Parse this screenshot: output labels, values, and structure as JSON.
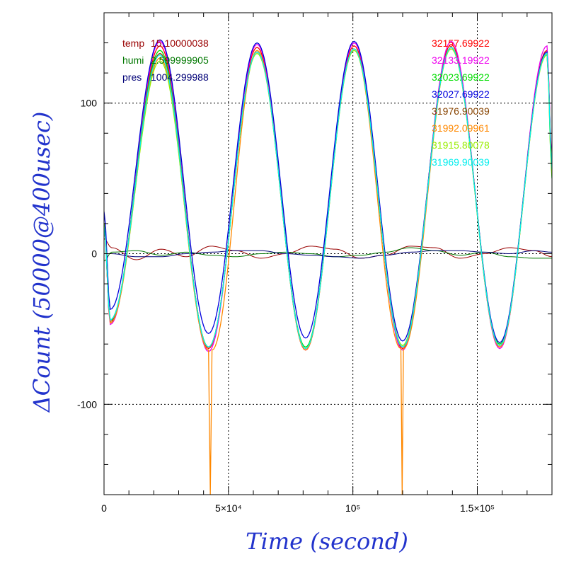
{
  "chart_data": {
    "type": "line",
    "xlabel": "Time (second)",
    "ylabel": "ΔCount (50000@400usec)",
    "xlim": [
      0,
      180000
    ],
    "ylim": [
      -160,
      160
    ],
    "grid": true,
    "x_ticks": [
      {
        "value": 0,
        "label": "0"
      },
      {
        "value": 50000,
        "label": "5×10⁴"
      },
      {
        "value": 100000,
        "label": "10⁵"
      },
      {
        "value": 150000,
        "label": "1.5×10⁵"
      }
    ],
    "y_ticks": [
      {
        "value": 100,
        "label": "100"
      },
      {
        "value": 0,
        "label": "0"
      },
      {
        "value": -100,
        "label": "-100"
      }
    ],
    "env_legend": [
      {
        "label": "temp",
        "value": "15.10000038",
        "color": "#990000"
      },
      {
        "label": "humi",
        "value": "2.599999905",
        "color": "#007700"
      },
      {
        "label": "pres",
        "value": "1004.299988",
        "color": "#000077"
      }
    ],
    "series": [
      {
        "name": "32157.69922",
        "color": "#ff0000",
        "period": 39000,
        "phase": 22500,
        "amp_top": 138,
        "amp_bot": -63,
        "points": [
          [
            0,
            20
          ],
          [
            2500,
            -46
          ],
          [
            22500,
            138
          ],
          [
            42000,
            -63
          ],
          [
            61500,
            137
          ],
          [
            81000,
            -64
          ],
          [
            100500,
            138
          ],
          [
            120000,
            -63
          ],
          [
            139500,
            139
          ],
          [
            159000,
            -62
          ],
          [
            178000,
            135
          ],
          [
            180000,
            60
          ]
        ]
      },
      {
        "name": "32133.19922",
        "color": "#ee00ee",
        "points": [
          [
            0,
            18
          ],
          [
            2500,
            -47
          ],
          [
            22500,
            141
          ],
          [
            42000,
            -65
          ],
          [
            61500,
            139
          ],
          [
            81000,
            -64
          ],
          [
            100500,
            140
          ],
          [
            120000,
            -64
          ],
          [
            139500,
            141
          ],
          [
            159000,
            -63
          ],
          [
            178000,
            138
          ],
          [
            180000,
            62
          ]
        ]
      },
      {
        "name": "32023.69922",
        "color": "#00dd00",
        "points": [
          [
            0,
            20
          ],
          [
            2500,
            -44
          ],
          [
            22500,
            135
          ],
          [
            42000,
            -62
          ],
          [
            61500,
            134
          ],
          [
            81000,
            -62
          ],
          [
            100500,
            136
          ],
          [
            120000,
            -61
          ],
          [
            139500,
            137
          ],
          [
            159000,
            -60
          ],
          [
            178000,
            133
          ],
          [
            180000,
            50
          ]
        ]
      },
      {
        "name": "32027.69922",
        "color": "#0000dd",
        "points": [
          [
            0,
            28
          ],
          [
            2500,
            -37
          ],
          [
            22500,
            142
          ],
          [
            42000,
            -53
          ],
          [
            61500,
            140
          ],
          [
            81000,
            -56
          ],
          [
            100500,
            141
          ],
          [
            120000,
            -58
          ],
          [
            139500,
            137
          ],
          [
            159000,
            -59
          ],
          [
            178000,
            134
          ],
          [
            180000,
            60
          ]
        ]
      },
      {
        "name": "31976.90039",
        "color": "#884400",
        "points": [
          [
            0,
            18
          ],
          [
            2500,
            -45
          ],
          [
            22500,
            133
          ],
          [
            42000,
            -62
          ],
          [
            61500,
            134
          ],
          [
            81000,
            -63
          ],
          [
            100500,
            136
          ],
          [
            120000,
            -62
          ],
          [
            139500,
            137
          ],
          [
            159000,
            -61
          ],
          [
            178000,
            133
          ],
          [
            180000,
            58
          ]
        ]
      },
      {
        "name": "31992.09961",
        "color": "#ff8800",
        "points": [
          [
            0,
            18
          ],
          [
            2500,
            -46
          ],
          [
            22500,
            130
          ],
          [
            42000,
            -64
          ],
          [
            42700,
            -160
          ],
          [
            43400,
            -64
          ],
          [
            61500,
            135
          ],
          [
            81000,
            -64
          ],
          [
            100500,
            136
          ],
          [
            119300,
            -63
          ],
          [
            119800,
            -160
          ],
          [
            120300,
            -63
          ],
          [
            139500,
            137
          ],
          [
            159000,
            -62
          ],
          [
            178000,
            133
          ],
          [
            180000,
            58
          ]
        ]
      },
      {
        "name": "31915.80078",
        "color": "#99ee00",
        "points": [
          [
            0,
            18
          ],
          [
            2500,
            -44
          ],
          [
            22500,
            128
          ],
          [
            42000,
            -62
          ],
          [
            61500,
            133
          ],
          [
            81000,
            -63
          ],
          [
            100500,
            135
          ],
          [
            120000,
            -61
          ],
          [
            139500,
            136
          ],
          [
            159000,
            -61
          ],
          [
            178000,
            132
          ],
          [
            180000,
            52
          ]
        ]
      },
      {
        "name": "31969.90039",
        "color": "#00eeee",
        "points": [
          [
            0,
            18
          ],
          [
            2500,
            -44
          ],
          [
            22500,
            132
          ],
          [
            42000,
            -62
          ],
          [
            61500,
            134
          ],
          [
            81000,
            -63
          ],
          [
            100500,
            136
          ],
          [
            120000,
            -62
          ],
          [
            139500,
            137
          ],
          [
            159000,
            -61
          ],
          [
            178000,
            133
          ],
          [
            180000,
            56
          ]
        ]
      }
    ],
    "env_series": [
      {
        "name": "temp",
        "color": "#990000",
        "points": [
          [
            0,
            10
          ],
          [
            3000,
            4
          ],
          [
            13000,
            -4
          ],
          [
            23000,
            3
          ],
          [
            33000,
            -2
          ],
          [
            43000,
            5
          ],
          [
            53000,
            2
          ],
          [
            63000,
            -3
          ],
          [
            73000,
            0
          ],
          [
            83000,
            5
          ],
          [
            93000,
            3
          ],
          [
            103000,
            -3
          ],
          [
            113000,
            -1
          ],
          [
            123000,
            5
          ],
          [
            133000,
            4
          ],
          [
            143000,
            -3
          ],
          [
            153000,
            0
          ],
          [
            163000,
            4
          ],
          [
            173000,
            2
          ],
          [
            180000,
            -2
          ]
        ]
      },
      {
        "name": "humi",
        "color": "#007700",
        "points": [
          [
            0,
            -5
          ],
          [
            3000,
            1
          ],
          [
            13000,
            2
          ],
          [
            23000,
            -1
          ],
          [
            33000,
            1
          ],
          [
            43000,
            -1
          ],
          [
            53000,
            -2
          ],
          [
            63000,
            0
          ],
          [
            73000,
            1
          ],
          [
            83000,
            0
          ],
          [
            93000,
            -2
          ],
          [
            103000,
            -1
          ],
          [
            113000,
            1
          ],
          [
            123000,
            4
          ],
          [
            133000,
            2
          ],
          [
            143000,
            -1
          ],
          [
            153000,
            1
          ],
          [
            163000,
            -2
          ],
          [
            173000,
            -3
          ],
          [
            180000,
            -3
          ]
        ]
      },
      {
        "name": "pres",
        "color": "#000077",
        "points": [
          [
            0,
            0
          ],
          [
            3000,
            0
          ],
          [
            13000,
            -2
          ],
          [
            23000,
            -2
          ],
          [
            33000,
            0
          ],
          [
            43000,
            1
          ],
          [
            53000,
            2
          ],
          [
            63000,
            2
          ],
          [
            73000,
            0
          ],
          [
            83000,
            -1
          ],
          [
            93000,
            -2
          ],
          [
            103000,
            -3
          ],
          [
            113000,
            -1
          ],
          [
            123000,
            1
          ],
          [
            133000,
            2
          ],
          [
            143000,
            2
          ],
          [
            153000,
            1
          ],
          [
            163000,
            0
          ],
          [
            173000,
            2
          ],
          [
            180000,
            1
          ]
        ]
      }
    ]
  }
}
